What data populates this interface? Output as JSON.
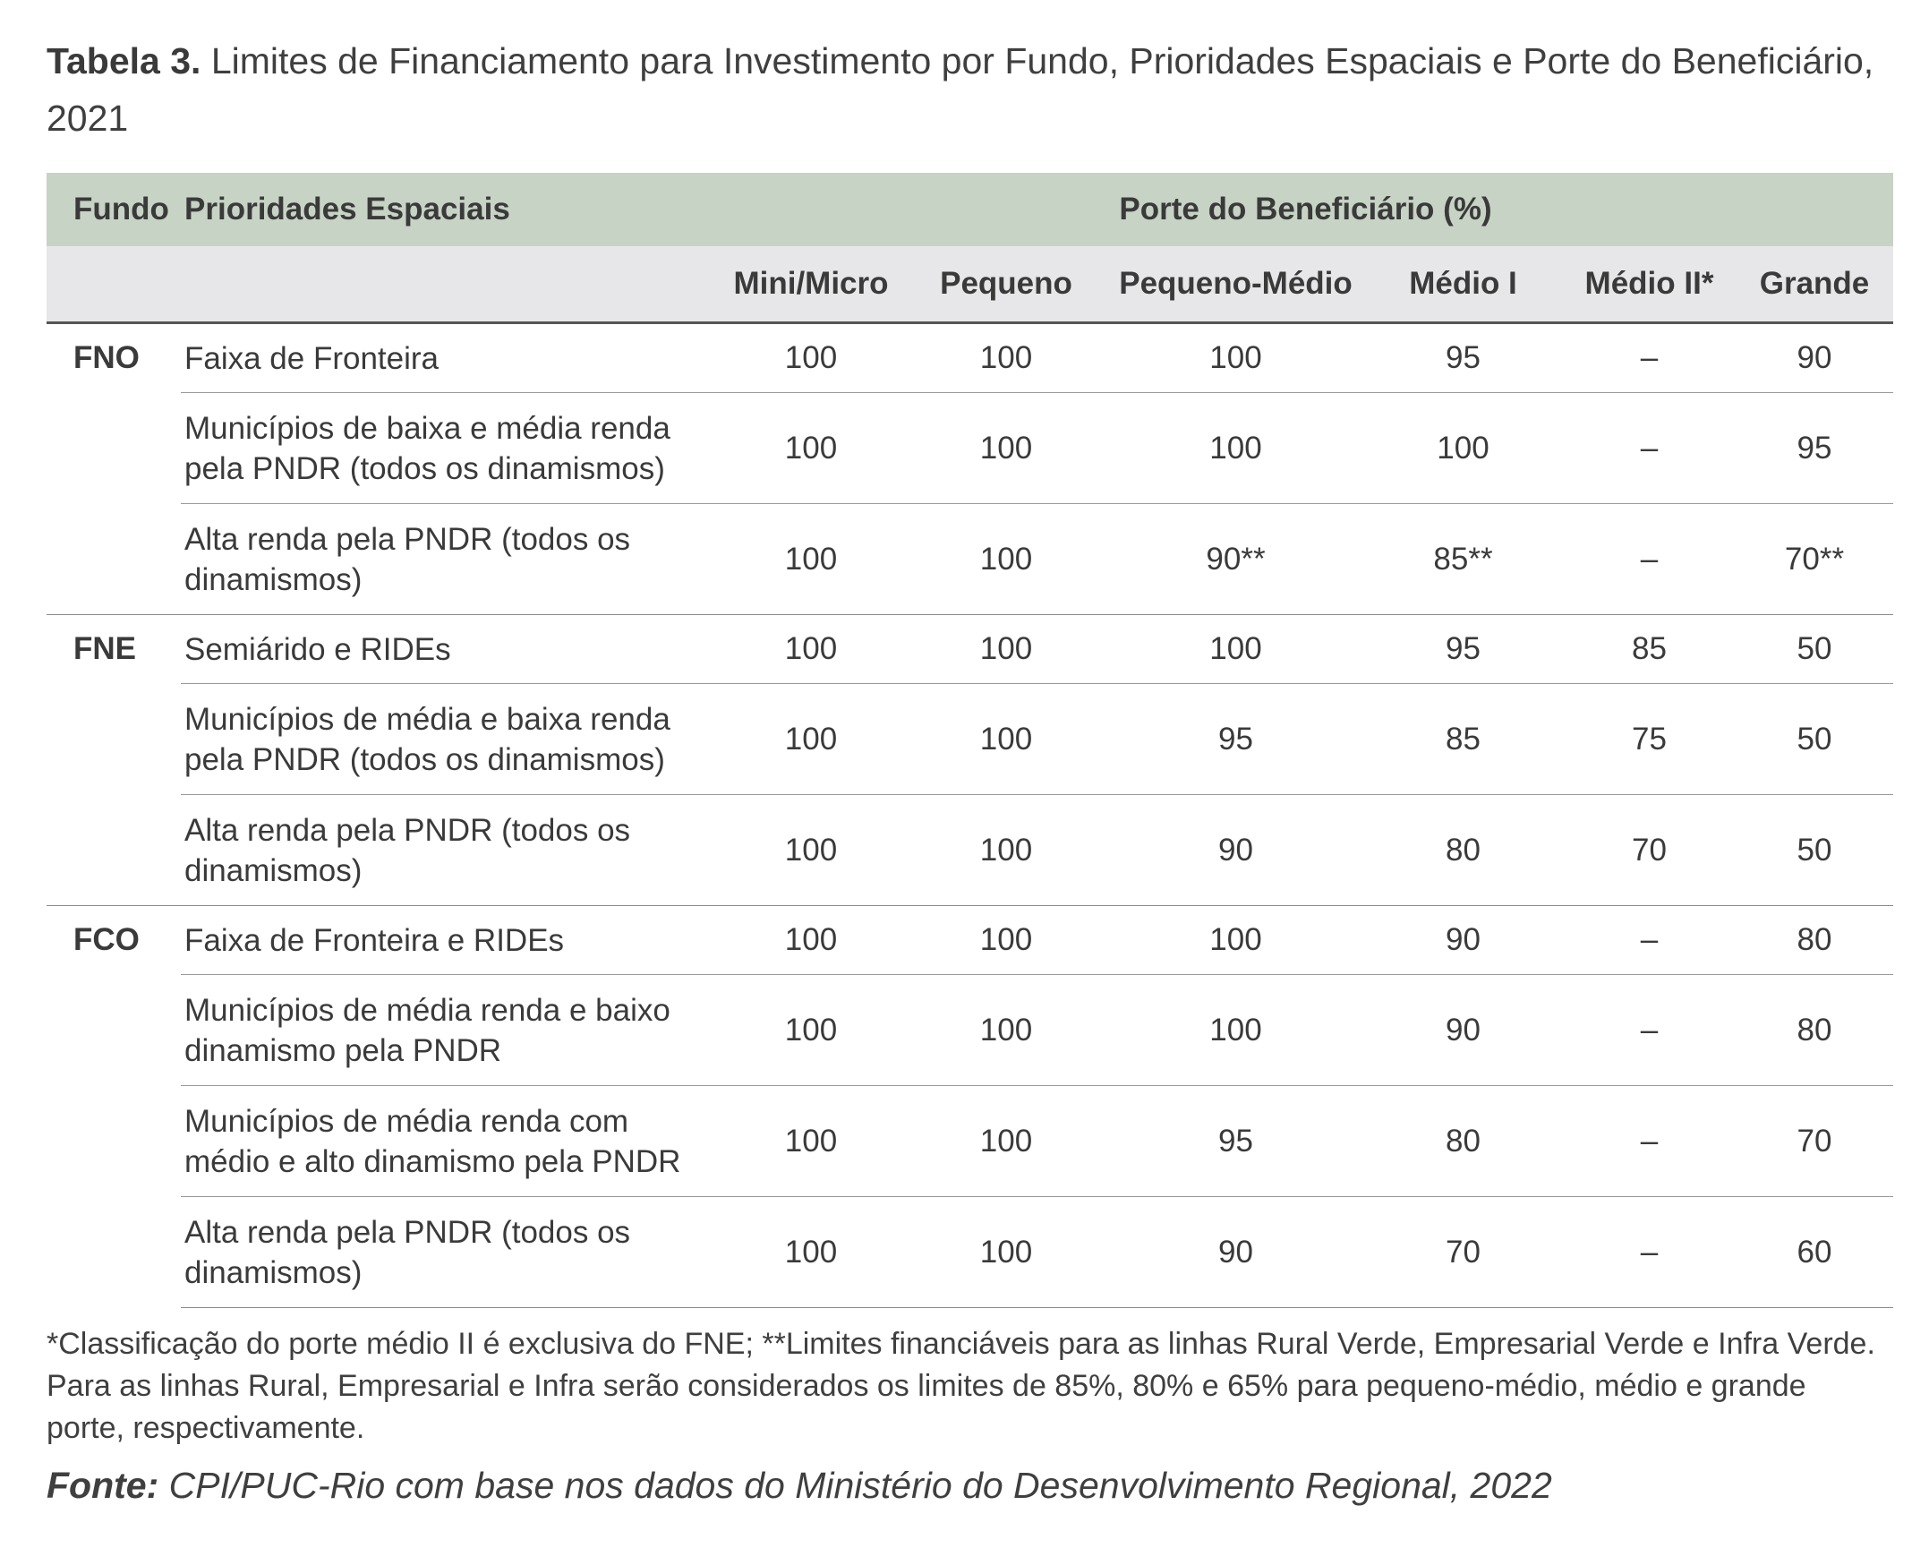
{
  "title": {
    "label": "Tabela 3.",
    "text": " Limites de Financiamento para Investimento por Fundo, Prioridades Espaciais e Porte do Beneficiário, 2021"
  },
  "header": {
    "fundo": "Fundo",
    "prioridades": "Prioridades Espaciais",
    "porte": "Porte do Beneficiário (%)",
    "columns": [
      "Mini/Micro",
      "Pequeno",
      "Pequeno-Médio",
      "Médio I",
      "Médio II*",
      "Grande"
    ]
  },
  "groups": [
    {
      "fundo": "FNO",
      "rows": [
        {
          "prioridade": "Faixa de Fronteira",
          "values": [
            "100",
            "100",
            "100",
            "95",
            "–",
            "90"
          ]
        },
        {
          "prioridade": "Municípios de baixa e média renda pela PNDR (todos os dinamismos)",
          "values": [
            "100",
            "100",
            "100",
            "100",
            "–",
            "95"
          ]
        },
        {
          "prioridade": "Alta renda pela PNDR (todos os dinamismos)",
          "values": [
            "100",
            "100",
            "90**",
            "85**",
            "–",
            "70**"
          ]
        }
      ]
    },
    {
      "fundo": "FNE",
      "rows": [
        {
          "prioridade": "Semiárido e RIDEs",
          "values": [
            "100",
            "100",
            "100",
            "95",
            "85",
            "50"
          ]
        },
        {
          "prioridade": "Municípios de média e baixa renda pela PNDR (todos os dinamismos)",
          "values": [
            "100",
            "100",
            "95",
            "85",
            "75",
            "50"
          ]
        },
        {
          "prioridade": "Alta renda pela PNDR (todos os dinamismos)",
          "values": [
            "100",
            "100",
            "90",
            "80",
            "70",
            "50"
          ]
        }
      ]
    },
    {
      "fundo": "FCO",
      "rows": [
        {
          "prioridade": "Faixa de Fronteira e RIDEs",
          "values": [
            "100",
            "100",
            "100",
            "90",
            "–",
            "80"
          ]
        },
        {
          "prioridade": "Municípios de média renda e baixo dinamismo pela PNDR",
          "values": [
            "100",
            "100",
            "100",
            "90",
            "–",
            "80"
          ]
        },
        {
          "prioridade": "Municípios de média renda com médio e alto dinamismo pela PNDR",
          "values": [
            "100",
            "100",
            "95",
            "80",
            "–",
            "70"
          ]
        },
        {
          "prioridade": "Alta renda pela PNDR (todos os dinamismos)",
          "values": [
            "100",
            "100",
            "90",
            "70",
            "–",
            "60"
          ]
        }
      ]
    }
  ],
  "note": "*Classificação do porte médio II é exclusiva do FNE; **Limites financiáveis para as linhas Rural Verde, Empresarial Verde e Infra Verde. Para as linhas Rural, Empresarial e Infra serão considerados os limites de 85%, 80% e 65% para pequeno-médio, médio e grande porte, respectivamente.",
  "source": {
    "label": "Fonte:",
    "text": " CPI/PUC-Rio com base nos dados do Ministério do Desenvolvimento Regional, 2022"
  }
}
